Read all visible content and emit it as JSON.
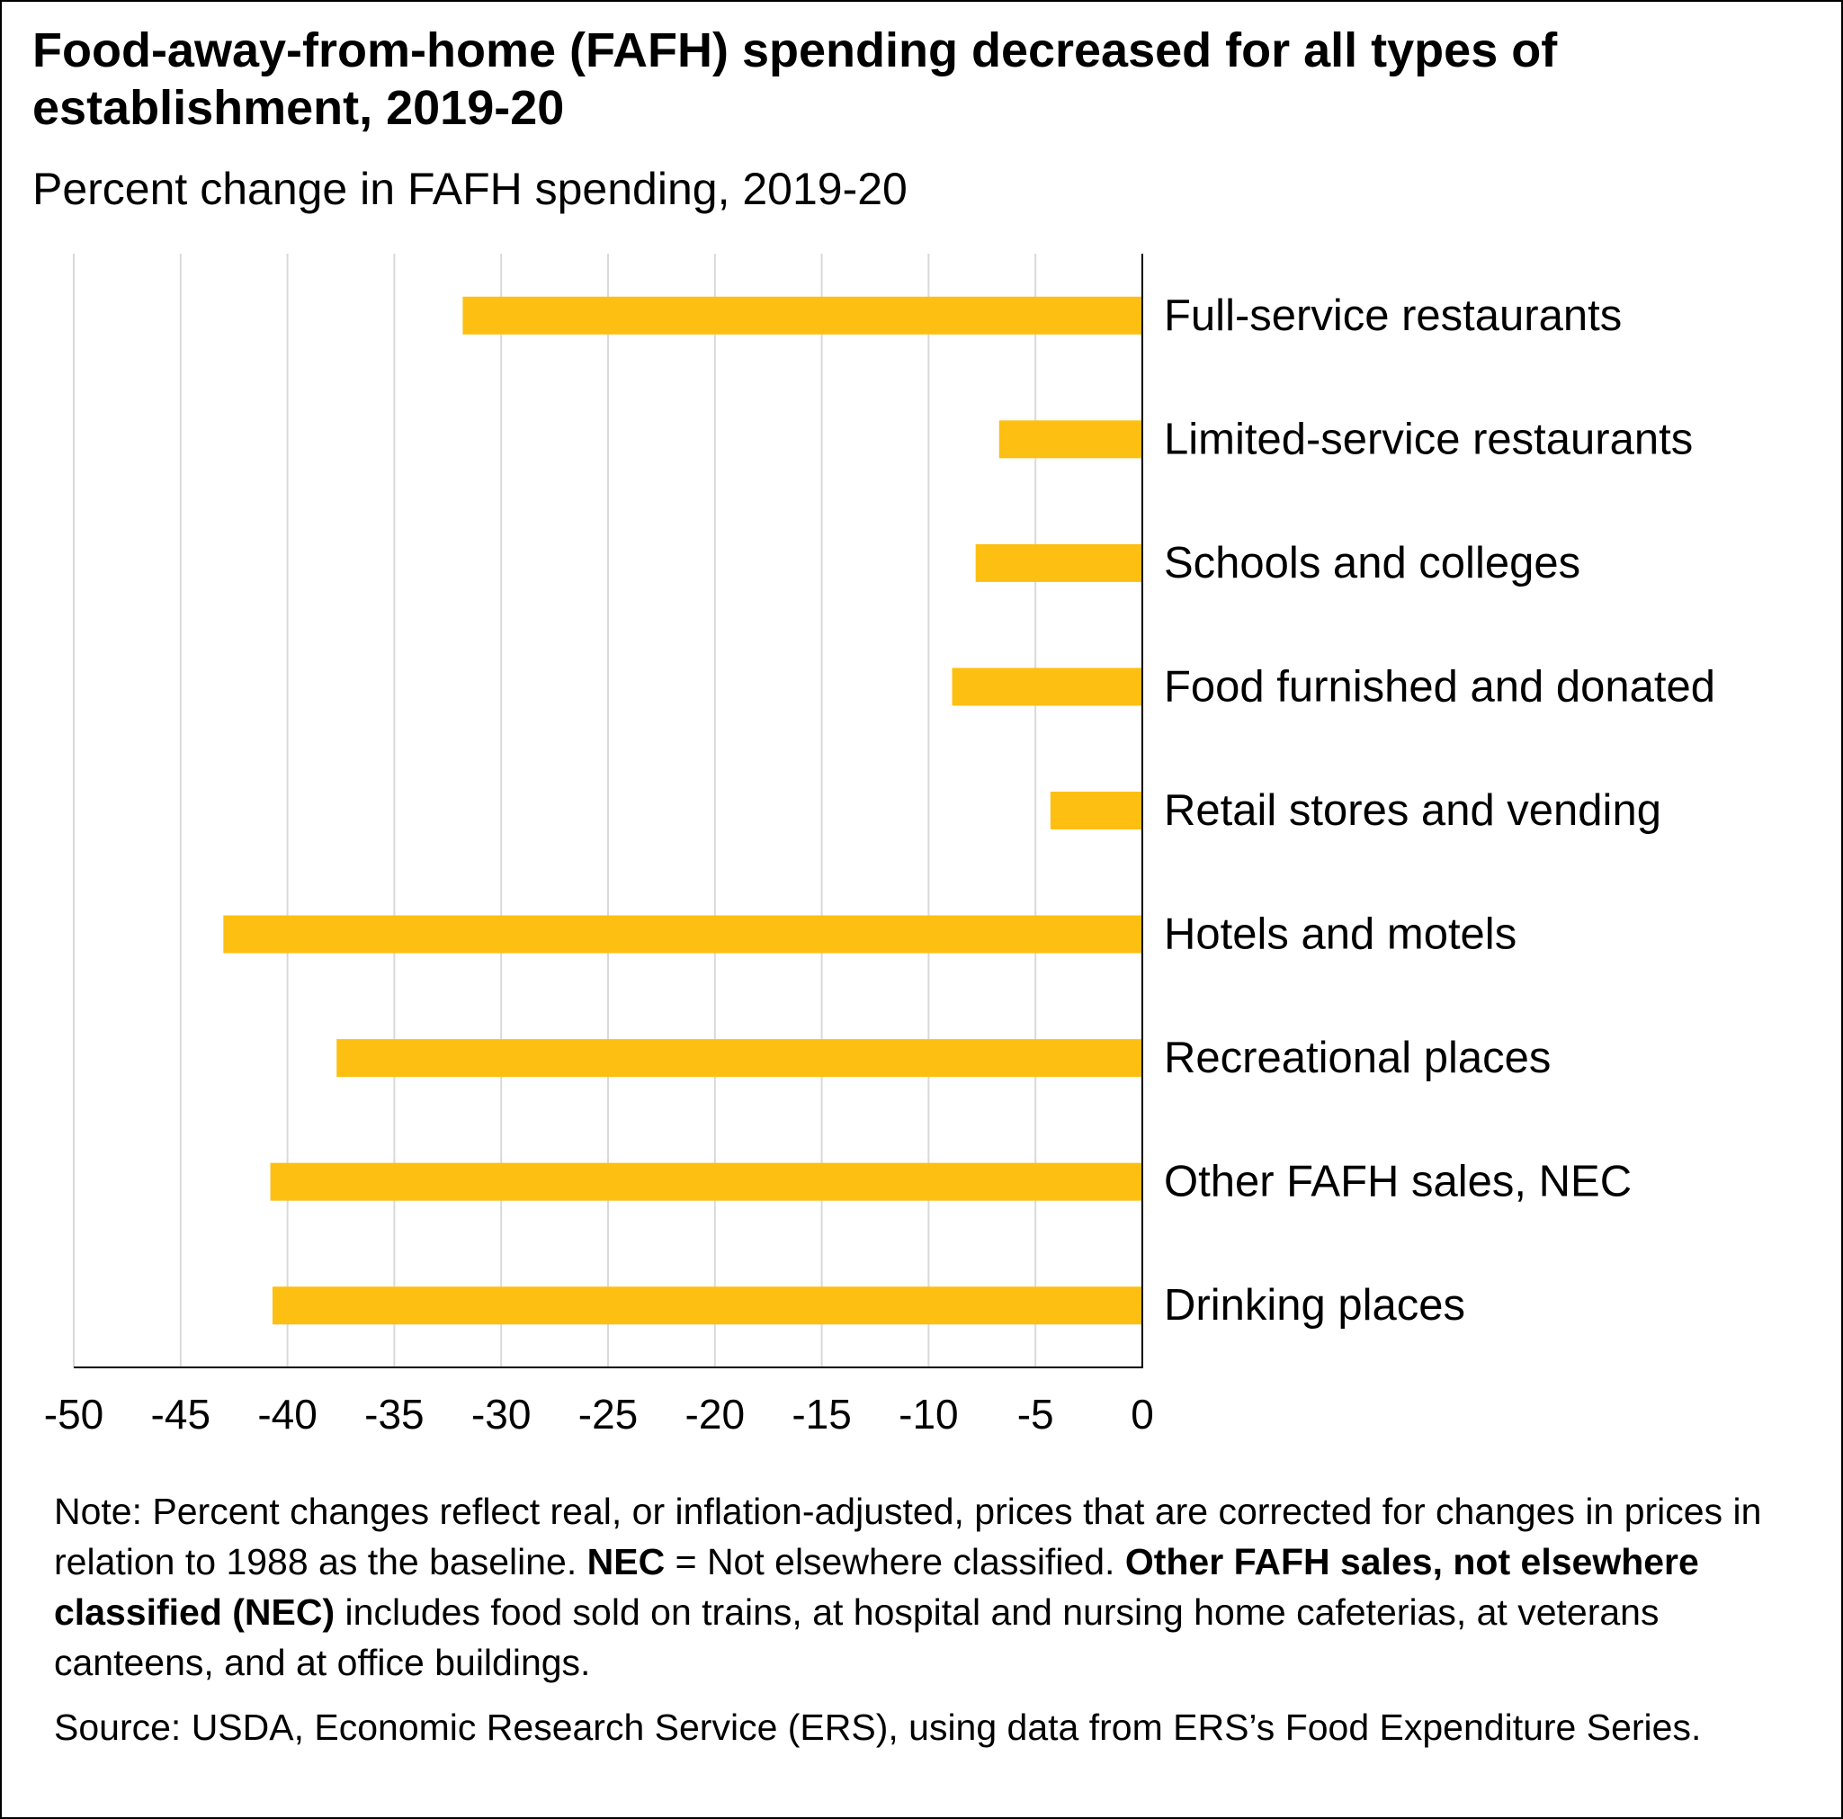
{
  "chart_data": {
    "type": "bar",
    "orientation": "horizontal",
    "title": "Food-away-from-home (FAFH) spending decreased for all types of establishment, 2019-20",
    "subtitle": "Percent change in FAFH spending, 2019-20",
    "categories": [
      "Full-service restaurants",
      "Limited-service restaurants",
      "Schools and colleges",
      "Food furnished and donated",
      "Retail stores and vending",
      "Hotels and motels",
      "Recreational places",
      "Other FAFH sales, NEC",
      "Drinking places"
    ],
    "values": [
      -31.8,
      -6.7,
      -7.8,
      -8.9,
      -4.3,
      -43.0,
      -37.7,
      -40.8,
      -40.7
    ],
    "xlim": [
      -50,
      0
    ],
    "x_ticks": [
      "-50",
      "-45",
      "-40",
      "-35",
      "-30",
      "-25",
      "-20",
      "-15",
      "-10",
      "-5",
      "0"
    ],
    "x_tick_values": [
      -50,
      -45,
      -40,
      -35,
      -30,
      -25,
      -20,
      -15,
      -10,
      -5,
      0
    ],
    "grid": true,
    "bar_color": "#FDBF11",
    "grid_color": "#D9D9D9"
  },
  "notes": {
    "note_p1": "Note: Percent changes reflect real, or inflation-adjusted, prices that are corrected for changes in prices in relation to 1988 as the baseline. ",
    "note_nec_bold": "NEC",
    "note_p2": " = Not elsewhere classified. ",
    "note_other_bold": "Other FAFH sales, not elsewhere classified (NEC)",
    "note_p3": " includes food sold on trains, at hospital and nursing home cafeterias, at veterans canteens, and at office buildings.",
    "source": "Source: USDA, Economic Research Service (ERS), using data from ERS’s Food Expenditure Series."
  }
}
